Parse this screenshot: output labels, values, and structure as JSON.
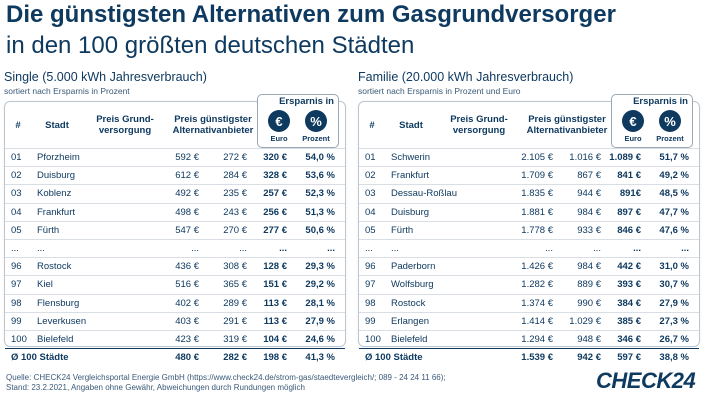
{
  "title_bold": "Die günstigsten Alternativen zum Gasgrundversorger",
  "title_light": "in den 100 größten deutschen Städten",
  "columns": {
    "num": "#",
    "city": "Stadt",
    "base": "Preis Grund-\nversorgung",
    "alt": "Preis günstigster\nAlternativanbieter",
    "savings": "Ersparnis in",
    "euro_symbol": "€",
    "pct_symbol": "%",
    "euro_label": "Euro",
    "pct_label": "Prozent"
  },
  "chart_data": [
    {
      "type": "table",
      "title": "Single (5.000 kWh Jahresverbrauch)",
      "subtitle": "sortiert nach Ersparnis in Prozent",
      "rows": [
        [
          "01",
          "Pforzheim",
          "592 €",
          "272 €",
          "320 €",
          "54,0 %"
        ],
        [
          "02",
          "Duisburg",
          "612 €",
          "284 €",
          "328 €",
          "53,6 %"
        ],
        [
          "03",
          "Koblenz",
          "492 €",
          "235 €",
          "257 €",
          "52,3 %"
        ],
        [
          "04",
          "Frankfurt",
          "498 €",
          "243 €",
          "256 €",
          "51,3 %"
        ],
        [
          "05",
          "Fürth",
          "547 €",
          "270 €",
          "277 €",
          "50,6 %"
        ],
        [
          "...",
          "...",
          "...",
          "...",
          "...",
          "..."
        ],
        [
          "96",
          "Rostock",
          "436 €",
          "308 €",
          "128 €",
          "29,3 %"
        ],
        [
          "97",
          "Kiel",
          "516 €",
          "365 €",
          "151 €",
          "29,2 %"
        ],
        [
          "98",
          "Flensburg",
          "402 €",
          "289 €",
          "113 €",
          "28,1 %"
        ],
        [
          "99",
          "Leverkusen",
          "403 €",
          "291 €",
          "113 €",
          "27,9 %"
        ],
        [
          "100",
          "Bielefeld",
          "423 €",
          "319 €",
          "104 €",
          "24,6 %"
        ]
      ],
      "total": [
        "Ø 100 Städte",
        "480 €",
        "282 €",
        "198 €",
        "41,3 %"
      ]
    },
    {
      "type": "table",
      "title": "Familie (20.000 kWh Jahresverbrauch)",
      "subtitle": "sortiert nach Ersparnis in Prozent und Euro",
      "rows": [
        [
          "01",
          "Schwerin",
          "2.105 €",
          "1.016 €",
          "1.089 €",
          "51,7 %"
        ],
        [
          "02",
          "Frankfurt",
          "1.709 €",
          "867 €",
          "841 €",
          "49,2 %"
        ],
        [
          "03",
          "Dessau-Roßlau",
          "1.835 €",
          "944 €",
          "891€",
          "48,5 %"
        ],
        [
          "04",
          "Duisburg",
          "1.881 €",
          "984 €",
          "897 €",
          "47,7 %"
        ],
        [
          "05",
          "Fürth",
          "1.778 €",
          "933 €",
          "846 €",
          "47,6 %"
        ],
        [
          "...",
          "...",
          "...",
          "...",
          "...",
          "..."
        ],
        [
          "96",
          "Paderborn",
          "1.426 €",
          "984 €",
          "442 €",
          "31,0 %"
        ],
        [
          "97",
          "Wolfsburg",
          "1.282 €",
          "889 €",
          "393 €",
          "30,7 %"
        ],
        [
          "98",
          "Rostock",
          "1.374 €",
          "990 €",
          "384 €",
          "27,9 %"
        ],
        [
          "99",
          "Erlangen",
          "1.414 €",
          "1.029 €",
          "385 €",
          "27,3 %"
        ],
        [
          "100",
          "Bielefeld",
          "1.294 €",
          "948 €",
          "346 €",
          "26,7 %"
        ]
      ],
      "total": [
        "Ø 100 Städte",
        "1.539 €",
        "942 €",
        "597 €",
        "38,8 %"
      ]
    }
  ],
  "source_line1": "Quelle: CHECK24 Vergleichsportal Energie GmbH (https://www.check24.de/strom-gas/staedtevergleich/; 089 - 24 24 11 66);",
  "source_line2": "Stand: 23.2.2021, Angaben ohne Gewähr, Abweichungen durch Rundungen möglich",
  "logo_text": "CHECK24"
}
